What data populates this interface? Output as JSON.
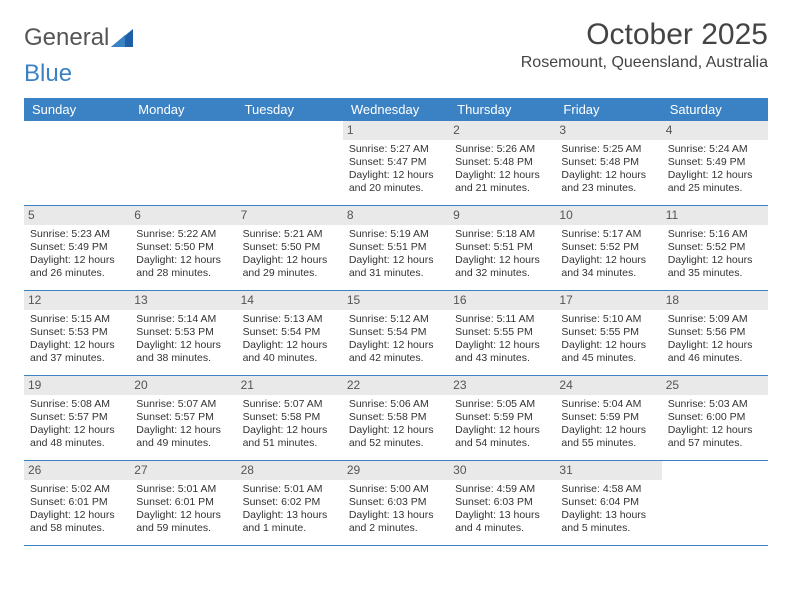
{
  "brand": {
    "part1": "General",
    "part2": "Blue"
  },
  "title": "October 2025",
  "location": "Rosemount, Queensland, Australia",
  "day_names": [
    "Sunday",
    "Monday",
    "Tuesday",
    "Wednesday",
    "Thursday",
    "Friday",
    "Saturday"
  ],
  "colors": {
    "header_bg": "#3b82c4",
    "header_text": "#ffffff",
    "daynum_bg": "#e9e9e9",
    "page_bg": "#ffffff",
    "text": "#333333"
  },
  "fonts": {
    "title_size": 30,
    "location_size": 16,
    "header_size": 13,
    "body_size": 10.5
  },
  "weeks": [
    [
      null,
      null,
      null,
      {
        "n": "1",
        "sunrise": "5:27 AM",
        "sunset": "5:47 PM",
        "daylight": "12 hours and 20 minutes."
      },
      {
        "n": "2",
        "sunrise": "5:26 AM",
        "sunset": "5:48 PM",
        "daylight": "12 hours and 21 minutes."
      },
      {
        "n": "3",
        "sunrise": "5:25 AM",
        "sunset": "5:48 PM",
        "daylight": "12 hours and 23 minutes."
      },
      {
        "n": "4",
        "sunrise": "5:24 AM",
        "sunset": "5:49 PM",
        "daylight": "12 hours and 25 minutes."
      }
    ],
    [
      {
        "n": "5",
        "sunrise": "5:23 AM",
        "sunset": "5:49 PM",
        "daylight": "12 hours and 26 minutes."
      },
      {
        "n": "6",
        "sunrise": "5:22 AM",
        "sunset": "5:50 PM",
        "daylight": "12 hours and 28 minutes."
      },
      {
        "n": "7",
        "sunrise": "5:21 AM",
        "sunset": "5:50 PM",
        "daylight": "12 hours and 29 minutes."
      },
      {
        "n": "8",
        "sunrise": "5:19 AM",
        "sunset": "5:51 PM",
        "daylight": "12 hours and 31 minutes."
      },
      {
        "n": "9",
        "sunrise": "5:18 AM",
        "sunset": "5:51 PM",
        "daylight": "12 hours and 32 minutes."
      },
      {
        "n": "10",
        "sunrise": "5:17 AM",
        "sunset": "5:52 PM",
        "daylight": "12 hours and 34 minutes."
      },
      {
        "n": "11",
        "sunrise": "5:16 AM",
        "sunset": "5:52 PM",
        "daylight": "12 hours and 35 minutes."
      }
    ],
    [
      {
        "n": "12",
        "sunrise": "5:15 AM",
        "sunset": "5:53 PM",
        "daylight": "12 hours and 37 minutes."
      },
      {
        "n": "13",
        "sunrise": "5:14 AM",
        "sunset": "5:53 PM",
        "daylight": "12 hours and 38 minutes."
      },
      {
        "n": "14",
        "sunrise": "5:13 AM",
        "sunset": "5:54 PM",
        "daylight": "12 hours and 40 minutes."
      },
      {
        "n": "15",
        "sunrise": "5:12 AM",
        "sunset": "5:54 PM",
        "daylight": "12 hours and 42 minutes."
      },
      {
        "n": "16",
        "sunrise": "5:11 AM",
        "sunset": "5:55 PM",
        "daylight": "12 hours and 43 minutes."
      },
      {
        "n": "17",
        "sunrise": "5:10 AM",
        "sunset": "5:55 PM",
        "daylight": "12 hours and 45 minutes."
      },
      {
        "n": "18",
        "sunrise": "5:09 AM",
        "sunset": "5:56 PM",
        "daylight": "12 hours and 46 minutes."
      }
    ],
    [
      {
        "n": "19",
        "sunrise": "5:08 AM",
        "sunset": "5:57 PM",
        "daylight": "12 hours and 48 minutes."
      },
      {
        "n": "20",
        "sunrise": "5:07 AM",
        "sunset": "5:57 PM",
        "daylight": "12 hours and 49 minutes."
      },
      {
        "n": "21",
        "sunrise": "5:07 AM",
        "sunset": "5:58 PM",
        "daylight": "12 hours and 51 minutes."
      },
      {
        "n": "22",
        "sunrise": "5:06 AM",
        "sunset": "5:58 PM",
        "daylight": "12 hours and 52 minutes."
      },
      {
        "n": "23",
        "sunrise": "5:05 AM",
        "sunset": "5:59 PM",
        "daylight": "12 hours and 54 minutes."
      },
      {
        "n": "24",
        "sunrise": "5:04 AM",
        "sunset": "5:59 PM",
        "daylight": "12 hours and 55 minutes."
      },
      {
        "n": "25",
        "sunrise": "5:03 AM",
        "sunset": "6:00 PM",
        "daylight": "12 hours and 57 minutes."
      }
    ],
    [
      {
        "n": "26",
        "sunrise": "5:02 AM",
        "sunset": "6:01 PM",
        "daylight": "12 hours and 58 minutes."
      },
      {
        "n": "27",
        "sunrise": "5:01 AM",
        "sunset": "6:01 PM",
        "daylight": "12 hours and 59 minutes."
      },
      {
        "n": "28",
        "sunrise": "5:01 AM",
        "sunset": "6:02 PM",
        "daylight": "13 hours and 1 minute."
      },
      {
        "n": "29",
        "sunrise": "5:00 AM",
        "sunset": "6:03 PM",
        "daylight": "13 hours and 2 minutes."
      },
      {
        "n": "30",
        "sunrise": "4:59 AM",
        "sunset": "6:03 PM",
        "daylight": "13 hours and 4 minutes."
      },
      {
        "n": "31",
        "sunrise": "4:58 AM",
        "sunset": "6:04 PM",
        "daylight": "13 hours and 5 minutes."
      },
      null
    ]
  ],
  "labels": {
    "sunrise": "Sunrise:",
    "sunset": "Sunset:",
    "daylight": "Daylight:"
  }
}
